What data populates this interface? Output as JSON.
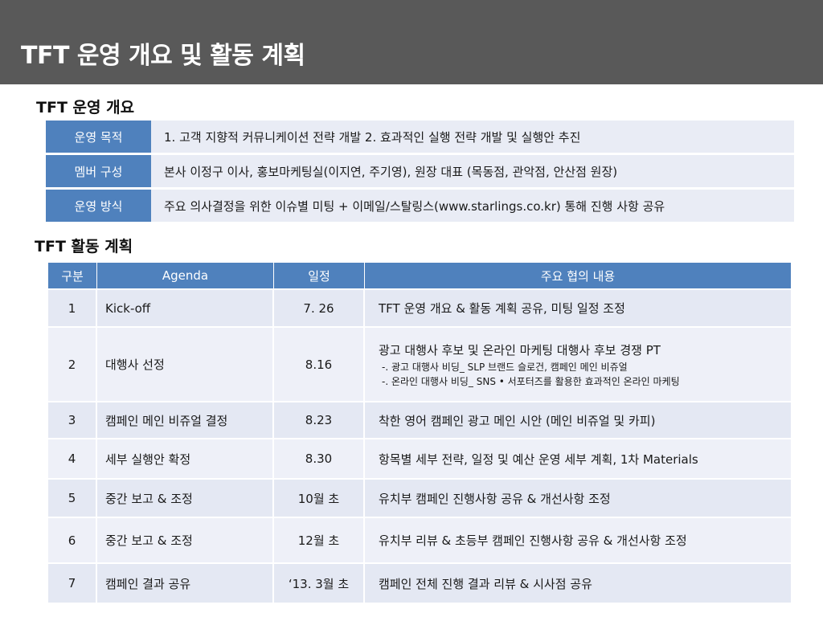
{
  "title": "TFT 운영 개요 및 활동 계획",
  "overview": {
    "heading": "TFT 운영 개요",
    "rows": [
      {
        "label": "운영 목적",
        "value": "1. 고객  지향적 커뮤니케이션 전략 개발  2. 효과적인 실행 전략 개발 및 실행안 추진"
      },
      {
        "label": "멤버 구성",
        "value": "본사 이정구 이사, 홍보마케팅실(이지연, 주기영),  원장 대표 (목동점, 관악점, 안산점 원장)"
      },
      {
        "label": "운영 방식",
        "value": "주요 의사결정을 위한 이슈별 미팅 + 이메일/스탈링스(www.starlings.co.kr)  통해 진행 사항 공유"
      }
    ]
  },
  "plan": {
    "heading": "TFT 활동 계획",
    "headers": [
      "구분",
      "Agenda",
      "일정",
      "주요 협의 내용"
    ],
    "rows": [
      {
        "no": "1",
        "agenda": "Kick-off",
        "date": "7. 26",
        "desc": "TFT 운영 개요 & 활동 계획 공유, 미팅 일정 조정",
        "subs": []
      },
      {
        "no": "2",
        "agenda": "대행사 선정",
        "date": "8.16",
        "desc": "광고 대행사 후보 및 온라인 마케팅 대행사 후보 경쟁 PT",
        "subs": [
          "-. 광고 대행사 비딩_ SLP 브랜드 슬로건,  캠페인 메인 비쥬얼",
          "-. 온라인 대행사 비딩_ SNS  •  서포터즈를 활용한 효과적인 온라인 마케팅"
        ]
      },
      {
        "no": "3",
        "agenda": "캠페인 메인 비쥬얼  결정",
        "date": "8.23",
        "desc": "착한 영어 캠페인 광고 메인 시안 (메인 비쥬얼 및 카피)",
        "subs": []
      },
      {
        "no": "4",
        "agenda": "세부 실행안 확정",
        "date": "8.30",
        "desc": "항목별 세부 전략, 일정 및 예산 운영 세부 계획, 1차 Materials",
        "subs": []
      },
      {
        "no": "5",
        "agenda": "중간 보고 & 조정",
        "date": "10월 초",
        "desc": "유치부 캠페인 진행사항 공유 & 개선사항 조정",
        "subs": []
      },
      {
        "no": "6",
        "agenda": "중간 보고 & 조정",
        "date": "12월 초",
        "desc": "유치부  리뷰 & 초등부 캠페인 진행사항 공유 & 개선사항 조정",
        "subs": []
      },
      {
        "no": "7",
        "agenda": "캠페인 결과 공유",
        "date": "‘13. 3월 초",
        "desc": "캠페인 전체 진행 결과 리뷰  & 시사점 공유",
        "subs": []
      }
    ]
  }
}
